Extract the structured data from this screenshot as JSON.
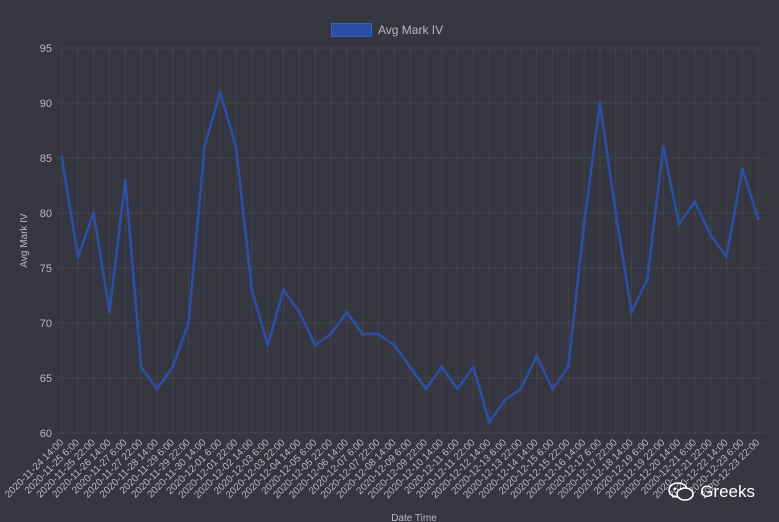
{
  "chart_data": {
    "type": "line",
    "legend": {
      "label": "Avg Mark IV",
      "position": "top"
    },
    "xlabel": "Date Time",
    "ylabel": "Avg Mark IV",
    "ylim": [
      60,
      95
    ],
    "yticks": [
      60,
      65,
      70,
      75,
      80,
      85,
      90,
      95
    ],
    "grid": true,
    "colors": {
      "line": "#2c4fa5",
      "grid": "#44444f",
      "text": "#b9b9c4"
    },
    "categories": [
      "2020-11-24 14:00",
      "2020-11-25 6:00",
      "2020-11-25 22:00",
      "2020-11-26 14:00",
      "2020-11-27 6:00",
      "2020-11-27 22:00",
      "2020-11-28 14:00",
      "2020-11-29 6:00",
      "2020-11-29 22:00",
      "2020-11-30 14:00",
      "2020-12-01 6:00",
      "2020-12-01 22:00",
      "2020-12-02 14:00",
      "2020-12-03 6:00",
      "2020-12-03 22:00",
      "2020-12-04 14:00",
      "2020-12-05 6:00",
      "2020-12-05 22:00",
      "2020-12-06 14:00",
      "2020-12-07 6:00",
      "2020-12-07 22:00",
      "2020-12-08 14:00",
      "2020-12-09 6:00",
      "2020-12-09 22:00",
      "2020-12-10 14:00",
      "2020-12-11 6:00",
      "2020-12-11 22:00",
      "2020-12-12 14:00",
      "2020-12-13 6:00",
      "2020-12-13 22:00",
      "2020-12-14 14:00",
      "2020-12-15 6:00",
      "2020-12-15 22:00",
      "2020-12-16 14:00",
      "2020-12-17 6:00",
      "2020-12-17 22:00",
      "2020-12-18 14:00",
      "2020-12-19 6:00",
      "2020-12-19 22:00",
      "2020-12-20 14:00",
      "2020-12-21 6:00",
      "2020-12-21 22:00",
      "2020-12-22 14:00",
      "2020-12-23 6:00",
      "2020-12-23 22:00"
    ],
    "series": [
      {
        "name": "Avg Mark IV",
        "values": [
          85.0,
          76.0,
          80.0,
          71.0,
          83.0,
          66.0,
          64.0,
          66.0,
          70.0,
          86.0,
          91.0,
          86.0,
          73.0,
          68.0,
          73.0,
          71.0,
          68.0,
          69.0,
          71.0,
          69.0,
          69.0,
          68.0,
          66.0,
          64.0,
          66.0,
          64.0,
          66.0,
          61.0,
          63.0,
          64.0,
          67.0,
          64.0,
          66.0,
          79.0,
          90.0,
          80.0,
          71.0,
          74.0,
          86.0,
          79.0,
          81.0,
          78.0,
          76.0,
          84.0,
          79.5
        ]
      }
    ]
  },
  "watermark": {
    "text": "Greeks",
    "icon": "wechat-icon"
  }
}
